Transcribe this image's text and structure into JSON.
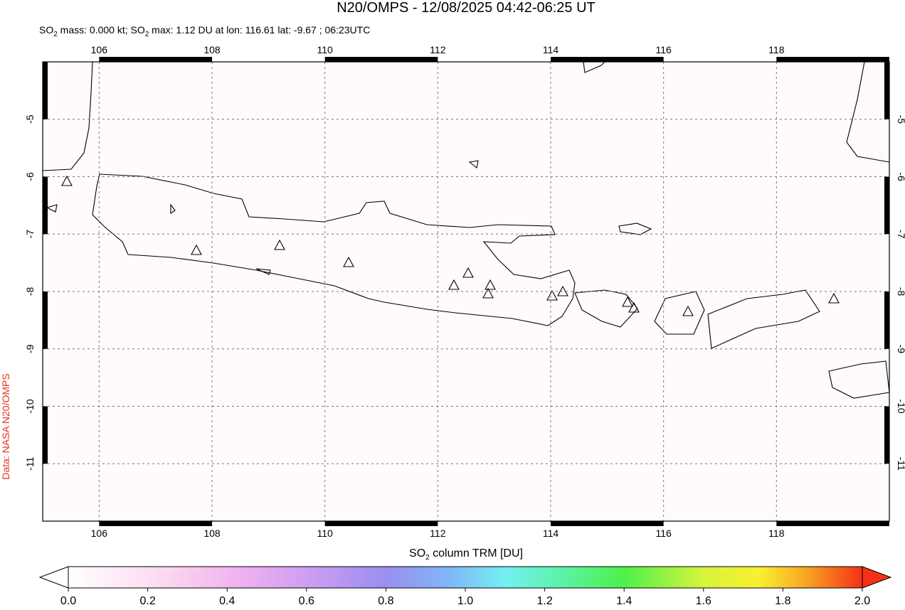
{
  "title": "N20/OMPS - 12/08/2025 04:42-06:25 UT",
  "subtitle": [
    "SO",
    "2",
    " mass: 0.000 kt; SO",
    "2",
    " max: 1.12 DU at lon: 116.61 lat: -9.67 ; 06:23UTC"
  ],
  "credit": "Data: NASA N20/OMPS",
  "map": {
    "lonlim": [
      105,
      120
    ],
    "latlim": [
      -4,
      -12
    ],
    "lon_ticks": [
      106,
      108,
      110,
      112,
      114,
      116,
      118
    ],
    "lat_ticks": [
      -5,
      -6,
      -7,
      -8,
      -9,
      -10,
      -11
    ]
  },
  "colorbar": {
    "label": [
      "SO",
      "2",
      " column TRM [DU]"
    ],
    "lim": [
      0,
      2
    ],
    "ticks": [
      {
        "value": 0,
        "label": "0.0"
      },
      {
        "value": 0.2,
        "label": "0.2"
      },
      {
        "value": 0.4,
        "label": "0.4"
      },
      {
        "value": 0.6,
        "label": "0.6"
      },
      {
        "value": 0.8,
        "label": "0.8"
      },
      {
        "value": 1,
        "label": "1.0"
      },
      {
        "value": 1.2,
        "label": "1.2"
      },
      {
        "value": 1.4,
        "label": "1.4"
      },
      {
        "value": 1.6,
        "label": "1.6"
      },
      {
        "value": 1.8,
        "label": "1.8"
      },
      {
        "value": 2,
        "label": "2.0"
      }
    ]
  }
}
